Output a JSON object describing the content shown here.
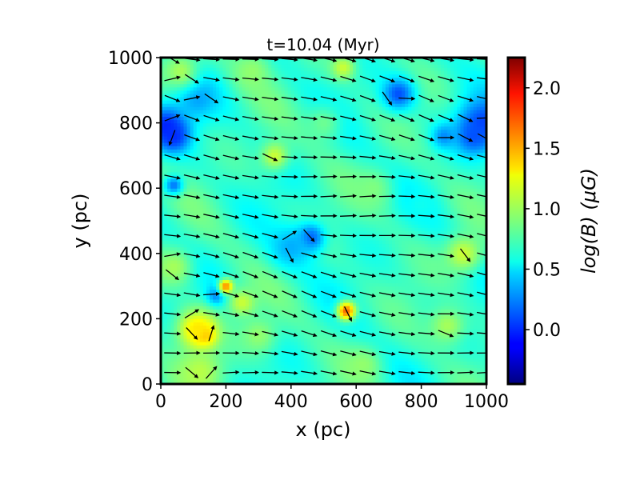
{
  "chart_data": {
    "type": "heatmap",
    "title": "t=10.04 (Myr)",
    "xlabel": "x (pc)",
    "ylabel": "y (pc)",
    "xlim": [
      0,
      1000
    ],
    "ylim": [
      0,
      1000
    ],
    "x_ticks": [
      0,
      200,
      400,
      600,
      800,
      1000
    ],
    "y_ticks": [
      0,
      200,
      400,
      600,
      800,
      1000
    ],
    "x_tick_labels": [
      "0",
      "200",
      "400",
      "600",
      "800",
      "1000"
    ],
    "y_tick_labels": [
      "0",
      "200",
      "400",
      "600",
      "800",
      "1000"
    ],
    "colormap": "jet",
    "background_value": 0.7,
    "colorbar": {
      "label": "log(B) (μG)",
      "range": [
        -0.45,
        2.25
      ],
      "ticks": [
        0.0,
        0.5,
        1.0,
        1.5,
        2.0
      ],
      "tick_labels": [
        "0.0",
        "0.5",
        "1.0",
        "1.5",
        "2.0"
      ]
    },
    "features": [
      {
        "x": 20,
        "y": 790,
        "value": -0.05,
        "radius": 45
      },
      {
        "x": 40,
        "y": 760,
        "value": 0.0,
        "radius": 30
      },
      {
        "x": 990,
        "y": 800,
        "value": 0.05,
        "radius": 55
      },
      {
        "x": 960,
        "y": 760,
        "value": 0.1,
        "radius": 35
      },
      {
        "x": 870,
        "y": 760,
        "value": 0.25,
        "radius": 25
      },
      {
        "x": 730,
        "y": 890,
        "value": 0.1,
        "radius": 35
      },
      {
        "x": 110,
        "y": 880,
        "value": 0.3,
        "radius": 45
      },
      {
        "x": 40,
        "y": 610,
        "value": 0.2,
        "radius": 20
      },
      {
        "x": 460,
        "y": 450,
        "value": 0.1,
        "radius": 30
      },
      {
        "x": 400,
        "y": 420,
        "value": 0.35,
        "radius": 45
      },
      {
        "x": 170,
        "y": 270,
        "value": 0.2,
        "radius": 20
      },
      {
        "x": 130,
        "y": 150,
        "value": 1.7,
        "radius": 25
      },
      {
        "x": 110,
        "y": 170,
        "value": 1.3,
        "radius": 45
      },
      {
        "x": 200,
        "y": 300,
        "value": 1.6,
        "radius": 15
      },
      {
        "x": 250,
        "y": 250,
        "value": 1.1,
        "radius": 30
      },
      {
        "x": 570,
        "y": 225,
        "value": 1.65,
        "radius": 20
      },
      {
        "x": 350,
        "y": 700,
        "value": 1.1,
        "radius": 30
      },
      {
        "x": 930,
        "y": 400,
        "value": 1.1,
        "radius": 40
      },
      {
        "x": 40,
        "y": 360,
        "value": 1.0,
        "radius": 40
      },
      {
        "x": 120,
        "y": 40,
        "value": 1.05,
        "radius": 50
      },
      {
        "x": 880,
        "y": 180,
        "value": 1.0,
        "radius": 40
      },
      {
        "x": 60,
        "y": 960,
        "value": 1.0,
        "radius": 40
      },
      {
        "x": 280,
        "y": 960,
        "value": 0.95,
        "radius": 40
      },
      {
        "x": 560,
        "y": 970,
        "value": 1.1,
        "radius": 25
      },
      {
        "x": 620,
        "y": 60,
        "value": 0.95,
        "radius": 40
      },
      {
        "x": 300,
        "y": 150,
        "value": 0.95,
        "radius": 40
      },
      {
        "x": 650,
        "y": 600,
        "value": 0.9,
        "radius": 45
      },
      {
        "x": 800,
        "y": 550,
        "value": 0.6,
        "radius": 35
      },
      {
        "x": 500,
        "y": 800,
        "value": 0.85,
        "radius": 40
      }
    ],
    "vector_field": {
      "grid_spacing": 60,
      "start": 35,
      "mean_angle_deg": -10,
      "description": "magnetic field direction arrows, predominantly pointing right"
    }
  }
}
